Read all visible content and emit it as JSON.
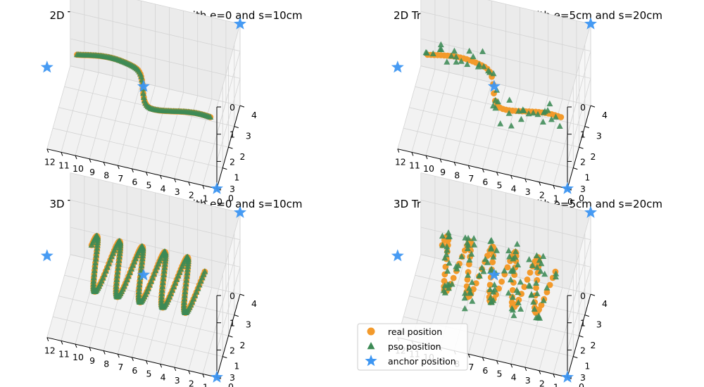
{
  "colors": {
    "real": "#F39A2B",
    "pso": "#3C8A55",
    "anchor": "#3D96F2"
  },
  "legend": {
    "position": "lower-left of bottom-right panel",
    "items": [
      {
        "label": "real position",
        "marker": "circle",
        "color": "#F39A2B"
      },
      {
        "label": "pso position",
        "marker": "triangle",
        "color": "#3C8A55"
      },
      {
        "label": "anchor position",
        "marker": "star",
        "color": "#3D96F2"
      }
    ]
  },
  "chart_data": [
    {
      "type": "scatter3d",
      "title": "2D Trajectory Positioning with e=0 and s=10cm",
      "x_ticks": [
        "0",
        "1",
        "2",
        "3",
        "4",
        "5",
        "6",
        "7",
        "8",
        "9",
        "10",
        "11",
        "12"
      ],
      "y_ticks": [
        "0",
        "1",
        "2",
        "3",
        "4"
      ],
      "z_ticks": [
        "0",
        "1",
        "2",
        "3"
      ],
      "xlim": [
        0,
        12
      ],
      "ylim": [
        0,
        4
      ],
      "zlim": [
        0,
        3
      ],
      "anchors": [
        [
          0,
          0,
          3
        ],
        [
          12,
          0,
          0
        ],
        [
          0,
          4,
          0
        ],
        [
          6,
          2,
          1.5
        ]
      ],
      "trajectory": {
        "shape": "s-curve",
        "x_range": [
          1,
          11
        ],
        "y_range": [
          1.2,
          2.8
        ],
        "z": 1.5
      },
      "pso_error_cm": 0,
      "step_cm": 10
    },
    {
      "type": "scatter3d",
      "title": "2D Trajectory Positioning with e=5cm and s=20cm",
      "x_ticks": [
        "0",
        "1",
        "2",
        "3",
        "4",
        "5",
        "6",
        "7",
        "8",
        "9",
        "10",
        "11",
        "12"
      ],
      "y_ticks": [
        "0",
        "1",
        "2",
        "3",
        "4"
      ],
      "z_ticks": [
        "0",
        "1",
        "2",
        "3"
      ],
      "xlim": [
        0,
        12
      ],
      "ylim": [
        0,
        4
      ],
      "zlim": [
        0,
        3
      ],
      "anchors": [
        [
          0,
          0,
          3
        ],
        [
          12,
          0,
          0
        ],
        [
          0,
          4,
          0
        ],
        [
          6,
          2,
          1.5
        ]
      ],
      "trajectory": {
        "shape": "s-curve",
        "x_range": [
          1,
          11
        ],
        "y_range": [
          1.2,
          2.8
        ],
        "z": 1.5
      },
      "pso_error_cm": 5,
      "step_cm": 20
    },
    {
      "type": "scatter3d",
      "title": "3D Trajectory Positioning with e=0 and s=10cm",
      "x_ticks": [
        "0",
        "1",
        "2",
        "3",
        "4",
        "5",
        "6",
        "7",
        "8",
        "9",
        "10",
        "11",
        "12"
      ],
      "y_ticks": [
        "0",
        "1",
        "2",
        "3",
        "4"
      ],
      "z_ticks": [
        "0",
        "1",
        "2",
        "3"
      ],
      "xlim": [
        0,
        12
      ],
      "ylim": [
        0,
        4
      ],
      "zlim": [
        0,
        3
      ],
      "anchors": [
        [
          0,
          0,
          3
        ],
        [
          12,
          0,
          0
        ],
        [
          0,
          4,
          0
        ],
        [
          6,
          2,
          1.5
        ]
      ],
      "trajectory": {
        "shape": "helix",
        "x_range": [
          2,
          10
        ],
        "turns": 5,
        "radius": 0.8,
        "center_y": 2,
        "center_z": 1.5
      },
      "pso_error_cm": 0,
      "step_cm": 10
    },
    {
      "type": "scatter3d",
      "title": "3D Trajectory Positioning with e=5cm and s=20cm",
      "x_ticks": [
        "0",
        "1",
        "2",
        "3",
        "4",
        "5",
        "6",
        "7",
        "8",
        "9",
        "10",
        "11",
        "12"
      ],
      "y_ticks": [
        "0",
        "1",
        "2",
        "3",
        "4"
      ],
      "z_ticks": [
        "0",
        "1",
        "2",
        "3"
      ],
      "xlim": [
        0,
        12
      ],
      "ylim": [
        0,
        4
      ],
      "zlim": [
        0,
        3
      ],
      "anchors": [
        [
          0,
          0,
          3
        ],
        [
          12,
          0,
          0
        ],
        [
          0,
          4,
          0
        ],
        [
          6,
          2,
          1.5
        ]
      ],
      "trajectory": {
        "shape": "helix",
        "x_range": [
          2,
          10
        ],
        "turns": 5,
        "radius": 0.8,
        "center_y": 2,
        "center_z": 1.5
      },
      "pso_error_cm": 5,
      "step_cm": 20
    }
  ]
}
